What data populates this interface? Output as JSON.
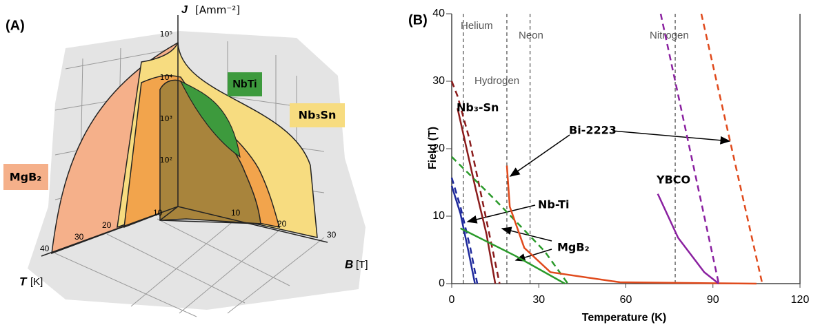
{
  "panel_a": {
    "label": "(A)",
    "j_axis": {
      "symbol": "J",
      "unit": "[Amm⁻²]",
      "ticks": [
        "10⁵",
        "10⁴",
        "10³",
        "10²"
      ]
    },
    "t_axis": {
      "symbol": "T",
      "unit": "[K]",
      "ticks": [
        "10",
        "20",
        "30",
        "40"
      ]
    },
    "b_axis": {
      "symbol": "B",
      "unit": "[T]",
      "ticks": [
        "10",
        "20",
        "30"
      ]
    },
    "materials": [
      "NbTi",
      "Nb₃Sn",
      "MgB₂"
    ]
  },
  "chart_data": {
    "type": "line",
    "panel_label": "(B)",
    "x_label": "Temperature (K)",
    "y_label": "Field (T)",
    "xlim": [
      0,
      120
    ],
    "ylim": [
      0,
      40
    ],
    "xticks": [
      0,
      30,
      60,
      90,
      120
    ],
    "yticks": [
      0,
      10,
      20,
      30,
      40
    ],
    "reference_lines": [
      {
        "name": "Helium",
        "x": 4
      },
      {
        "name": "Hydrogen",
        "x": 19
      },
      {
        "name": "Neon",
        "x": 27
      },
      {
        "name": "Nitrogen",
        "x": 77
      }
    ],
    "series": [
      {
        "name": "Nb-Ti",
        "color": "#1f2a9c",
        "lines": [
          {
            "style": "solid",
            "x": [
              0,
              3,
              6,
              8
            ],
            "values": [
              14.5,
              10.4,
              4.3,
              0
            ]
          },
          {
            "style": "dashed",
            "x": [
              0,
              3,
              6.4,
              8.8
            ],
            "values": [
              15.7,
              11.4,
              5.3,
              0
            ]
          }
        ]
      },
      {
        "name": "Nb₃-Sn",
        "color": "#8b1c1c",
        "lines": [
          {
            "style": "solid",
            "x": [
              2,
              8,
              12,
              15
            ],
            "values": [
              26,
              14.5,
              7.3,
              0
            ]
          },
          {
            "style": "dashed",
            "x": [
              0,
              2,
              6,
              11,
              16.5
            ],
            "values": [
              30,
              27.8,
              21.6,
              11.4,
              0
            ]
          }
        ]
      },
      {
        "name": "MgB₂",
        "color": "#2a9a2a",
        "lines": [
          {
            "style": "solid",
            "x": [
              3,
              22,
              39
            ],
            "values": [
              8.2,
              4.1,
              0
            ]
          },
          {
            "style": "dashed",
            "x": [
              0,
              15,
              32,
              40
            ],
            "values": [
              18.8,
              12.4,
              4.8,
              0
            ]
          }
        ]
      },
      {
        "name": "Bi-2223",
        "color": "#e04a1c",
        "lines": [
          {
            "style": "solid",
            "x": [
              19,
              20,
              25,
              34,
              58,
              105
            ],
            "values": [
              17.5,
              11.4,
              5.3,
              1.7,
              0.2,
              0
            ]
          },
          {
            "style": "dashed",
            "x": [
              86,
              107
            ],
            "values": [
              40,
              0
            ]
          }
        ]
      },
      {
        "name": "YBCO",
        "color": "#8a20a0",
        "lines": [
          {
            "style": "solid",
            "x": [
              71,
              78,
              87,
              92
            ],
            "values": [
              13.3,
              6.8,
              1.7,
              0
            ]
          },
          {
            "style": "dashed",
            "x": [
              72,
              92
            ],
            "values": [
              40,
              0
            ]
          }
        ]
      }
    ]
  }
}
